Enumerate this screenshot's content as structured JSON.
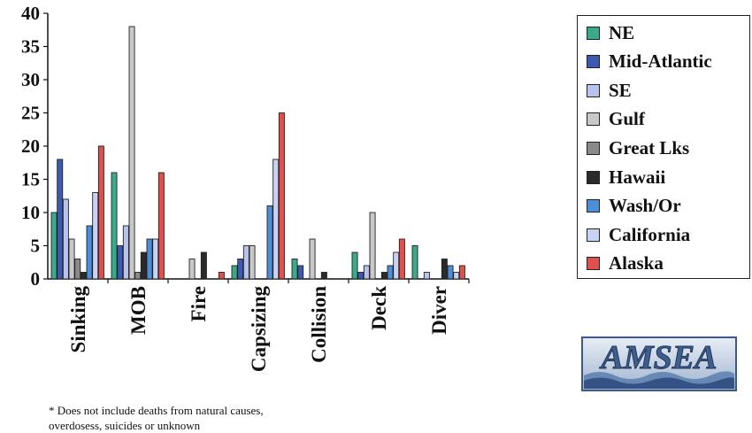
{
  "chart_data": {
    "type": "bar",
    "categories": [
      "Sinking",
      "MOB",
      "Fire",
      "Capsizing",
      "Collision",
      "Deck",
      "Diver"
    ],
    "ylim": [
      0,
      40
    ],
    "yticks": [
      0,
      5,
      10,
      15,
      20,
      25,
      30,
      35,
      40
    ],
    "grid": false,
    "legend_position": "right",
    "series": [
      {
        "name": "NE",
        "color": "#3aaa8a",
        "values": [
          10,
          16,
          0,
          2,
          3,
          4,
          5
        ]
      },
      {
        "name": "Mid-Atlantic",
        "color": "#3c5bb0",
        "values": [
          18,
          5,
          0,
          3,
          2,
          1,
          0
        ]
      },
      {
        "name": "SE",
        "color": "#b7c3ee",
        "values": [
          12,
          8,
          0,
          5,
          0,
          2,
          1
        ]
      },
      {
        "name": "Gulf",
        "color": "#c8c8c8",
        "values": [
          6,
          38,
          3,
          5,
          6,
          10,
          0
        ]
      },
      {
        "name": "Great Lks",
        "color": "#8a8a8a",
        "values": [
          3,
          1,
          0,
          0,
          0,
          0,
          0
        ]
      },
      {
        "name": "Hawaii",
        "color": "#2a2a2a",
        "values": [
          1,
          4,
          4,
          0,
          1,
          1,
          3
        ]
      },
      {
        "name": "Wash/Or",
        "color": "#4a8fd8",
        "values": [
          8,
          6,
          0,
          11,
          0,
          2,
          2
        ]
      },
      {
        "name": "California",
        "color": "#c9d2f4",
        "values": [
          13,
          6,
          0,
          18,
          0,
          4,
          1
        ]
      },
      {
        "name": "Alaska",
        "color": "#e0504c",
        "values": [
          20,
          16,
          1,
          25,
          0,
          6,
          2
        ]
      }
    ]
  },
  "footnote": {
    "line1": "* Does not include deaths from natural causes,",
    "line2": "overdosess, suicides or unknown"
  },
  "logo": {
    "text": "AMSEA"
  }
}
